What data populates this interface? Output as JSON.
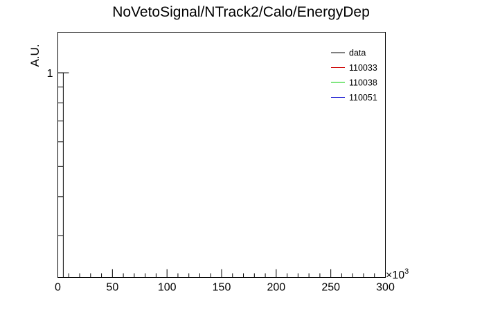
{
  "chart_data": {
    "type": "line",
    "title": "NoVetoSignal/NTrack2/Calo/EnergyDep",
    "xlabel": "",
    "ylabel": "A.U.",
    "x_multiplier_label": "×10",
    "x_multiplier_exponent": "3",
    "xlim": [
      0,
      300
    ],
    "x_major_ticks": [
      0,
      50,
      100,
      150,
      200,
      250,
      300
    ],
    "x_minor_step": 10,
    "y_scale": "log",
    "ylim": [
      0.22,
      1.35
    ],
    "y_major_ticks": [
      {
        "value": 1,
        "label": "1"
      }
    ],
    "y_minor_ticks": [
      0.3,
      0.4,
      0.5,
      0.6,
      0.7,
      0.8,
      0.9
    ],
    "grid": false,
    "legend_position": "top-right",
    "series": [
      {
        "name": "data",
        "color": "#000000",
        "x": [
          0,
          5
        ],
        "y": [
          1,
          1
        ]
      },
      {
        "name": "110033",
        "color": "#cc0000",
        "x": [],
        "y": []
      },
      {
        "name": "110038",
        "color": "#00cc00",
        "x": [],
        "y": []
      },
      {
        "name": "110051",
        "color": "#0000cc",
        "x": [],
        "y": []
      }
    ]
  }
}
